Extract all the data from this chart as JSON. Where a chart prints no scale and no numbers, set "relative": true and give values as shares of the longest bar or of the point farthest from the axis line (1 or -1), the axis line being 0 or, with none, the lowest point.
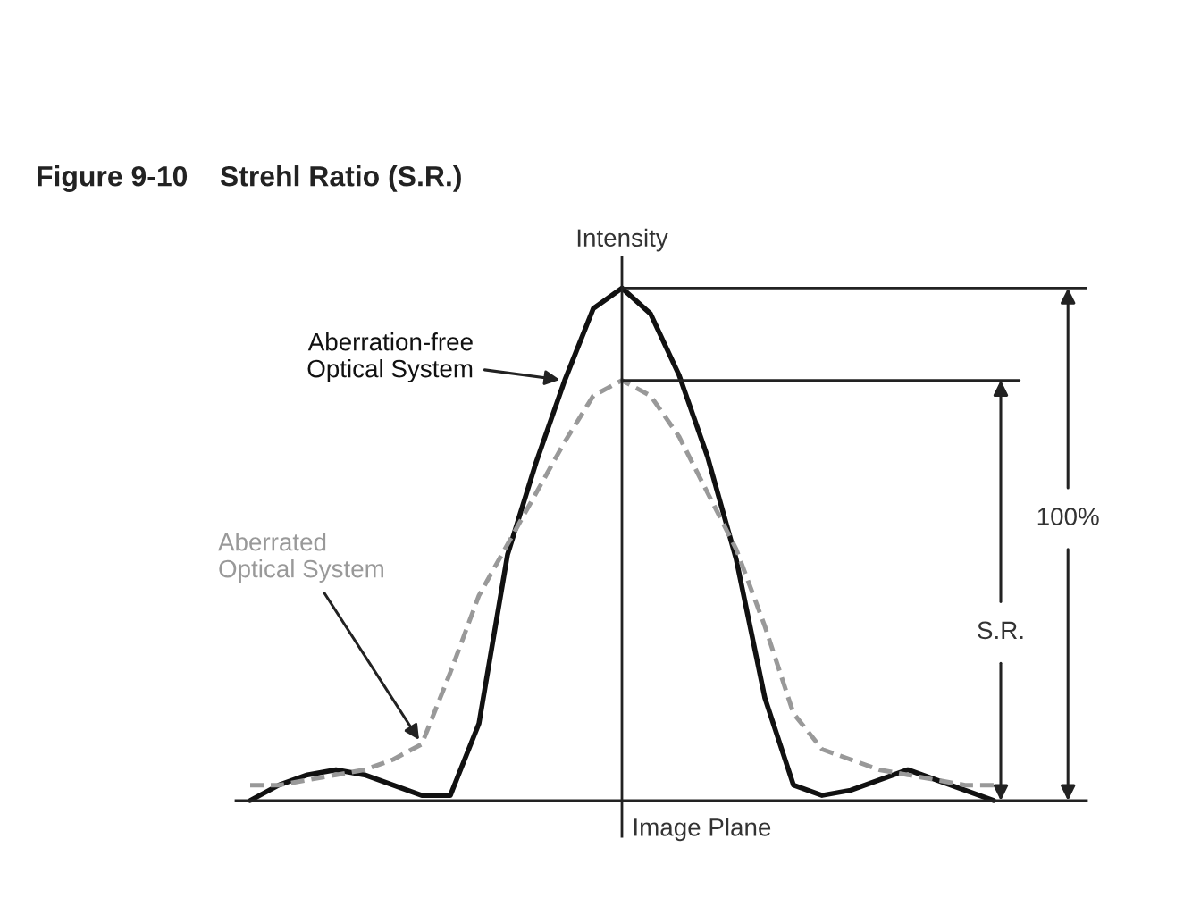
{
  "chart_data": {
    "type": "line",
    "relative": true,
    "title": "Figure 9-10    Strehl Ratio (S.R.)",
    "xlabel": "Image Plane",
    "ylabel": "Intensity",
    "categories": [
      null,
      null,
      null,
      null,
      null,
      null,
      null,
      null,
      null,
      null,
      null,
      null,
      null,
      null,
      null,
      null,
      null,
      null,
      null,
      null,
      null,
      null,
      null,
      null,
      null,
      null,
      null
    ],
    "series": [
      {
        "name": "Aberration-free\nOptical System",
        "color": "#111111",
        "line_style": "solid",
        "values": [
          0.0,
          0.03,
          0.05,
          0.06,
          0.05,
          0.03,
          0.01,
          0.01,
          0.15,
          0.48,
          0.66,
          0.82,
          0.96,
          1.0,
          0.95,
          0.83,
          0.67,
          0.47,
          0.2,
          0.03,
          0.01,
          0.02,
          0.04,
          0.06,
          0.04,
          0.02,
          0.0
        ]
      },
      {
        "name": "Aberrated\nOptical System",
        "color": "#999999",
        "line_style": "dashed",
        "values": [
          0.03,
          0.03,
          0.04,
          0.05,
          0.06,
          0.08,
          0.11,
          0.25,
          0.4,
          0.5,
          0.6,
          0.7,
          0.79,
          0.82,
          0.79,
          0.71,
          0.6,
          0.49,
          0.34,
          0.17,
          0.1,
          0.08,
          0.06,
          0.05,
          0.04,
          0.03,
          0.03
        ]
      }
    ],
    "ref_lines": [
      {
        "axis": "y",
        "value": 1.0
      },
      {
        "axis": "y",
        "value": 0.82
      }
    ],
    "annotations": [
      "100%",
      "S.R."
    ],
    "legend": false,
    "marker": "none"
  }
}
